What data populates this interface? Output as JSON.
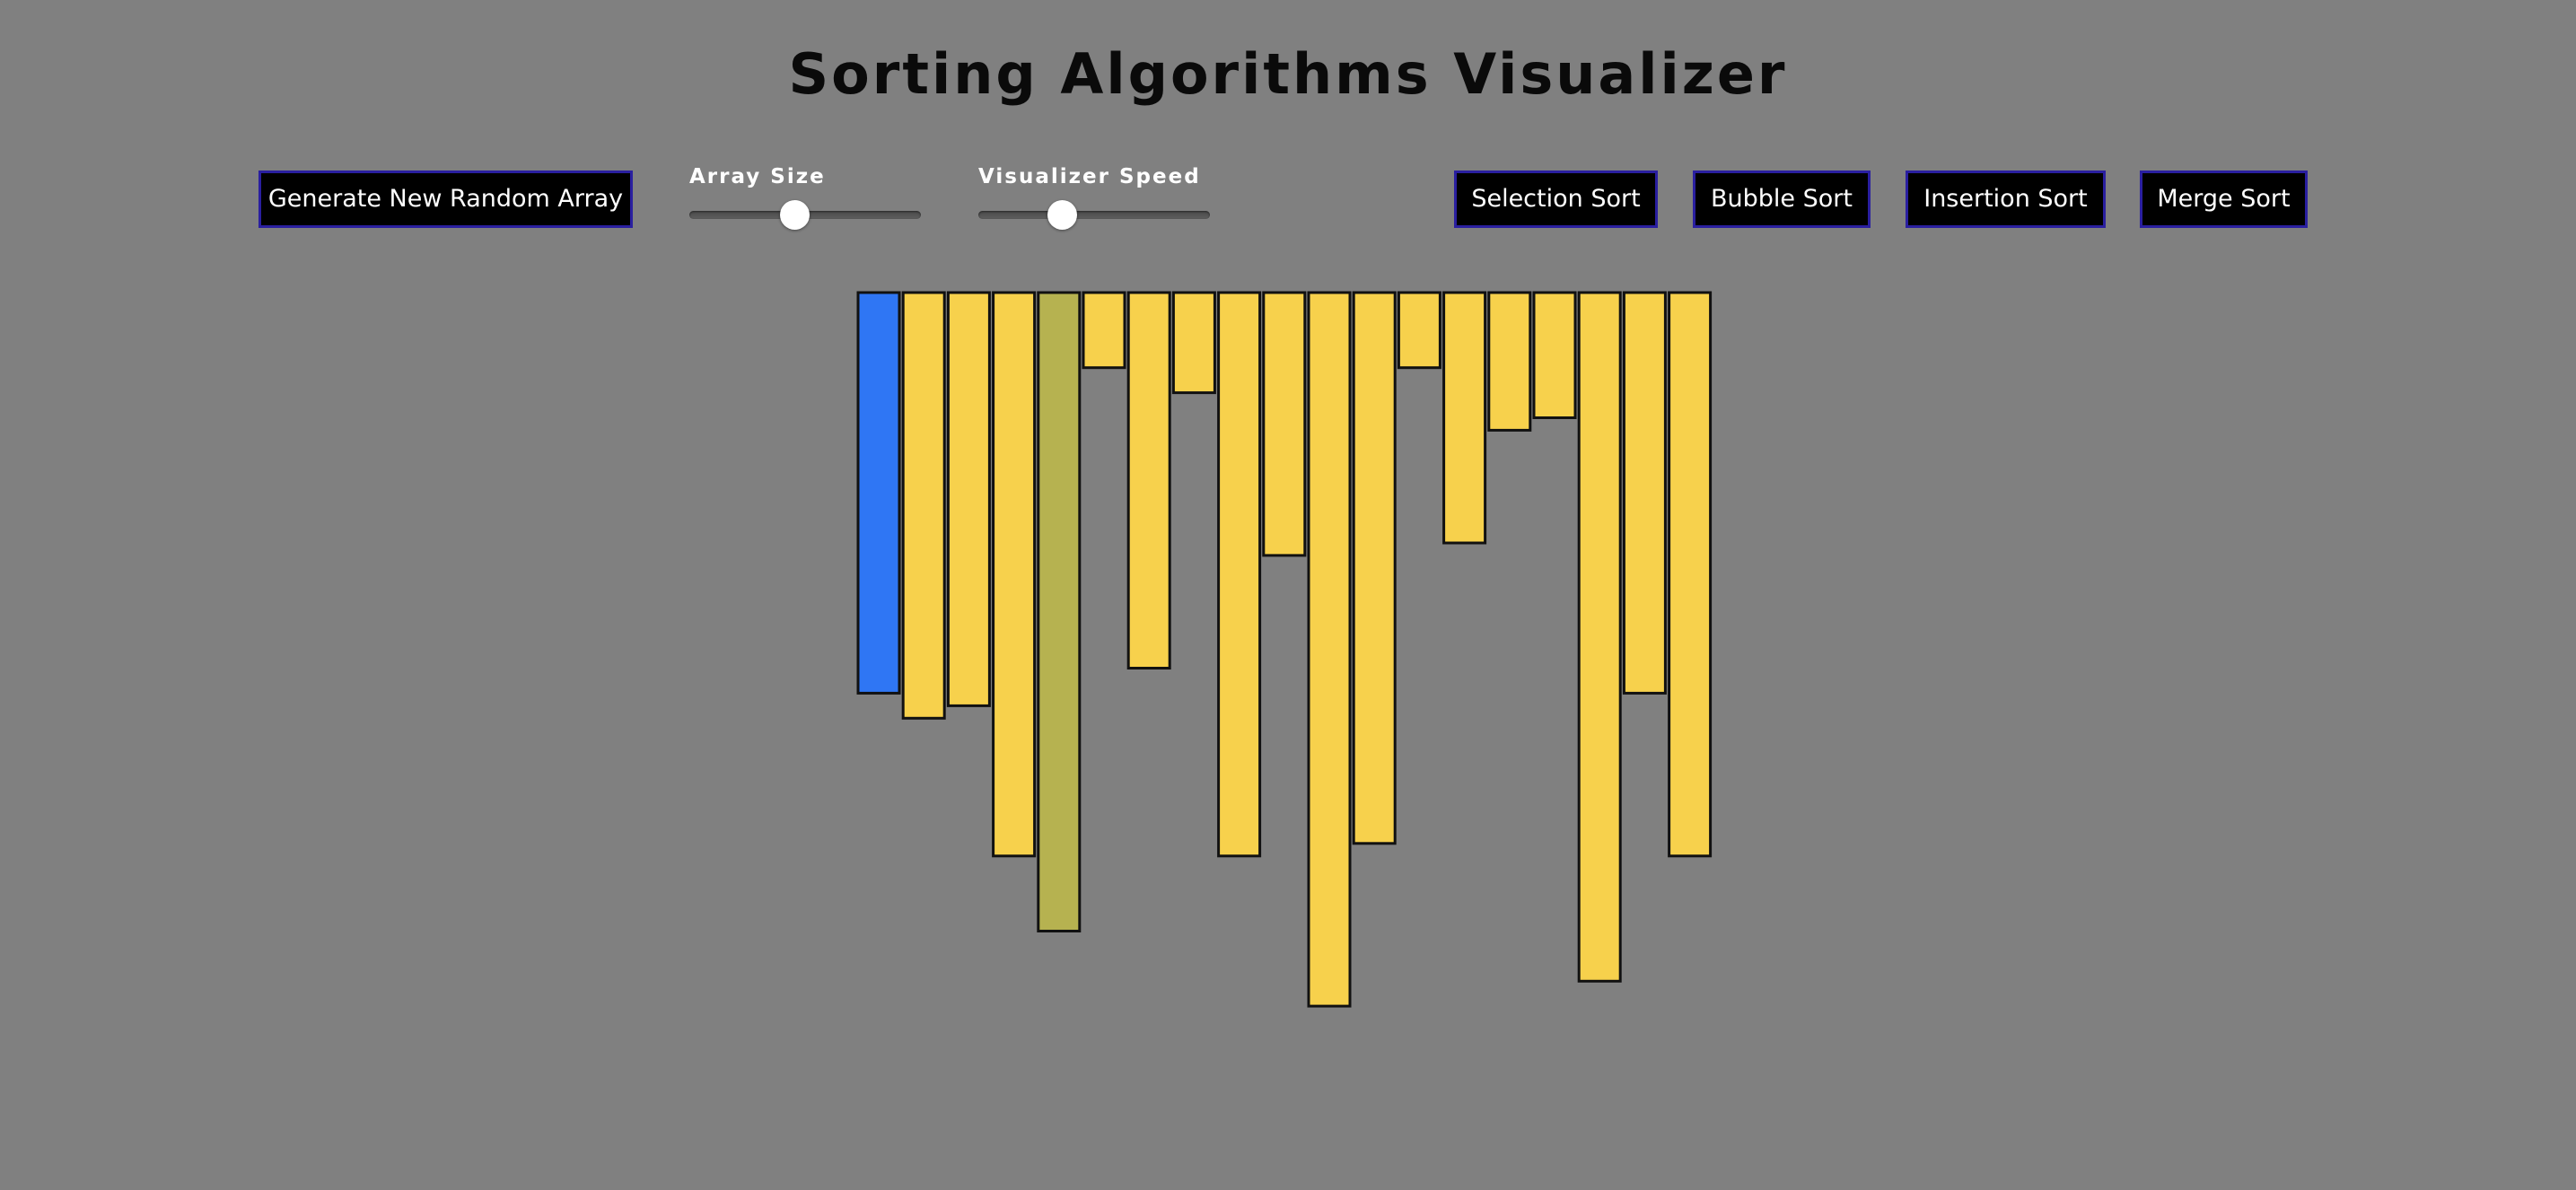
{
  "title": "Sorting Algorithms Visualizer",
  "buttons": {
    "generate": "Generate New Random Array",
    "selection": "Selection Sort",
    "bubble": "Bubble Sort",
    "insertion": "Insertion Sort",
    "merge": "Merge Sort"
  },
  "sliders": {
    "array_size": {
      "label": "Array Size",
      "value_fraction": 0.45
    },
    "speed": {
      "label": "Visualizer Speed",
      "value_fraction": 0.34
    }
  },
  "colors": {
    "background": "#808080",
    "bar_default": "#f7d14c",
    "bar_current": "#2f76f4",
    "bar_compare": "#b6b250",
    "bar_border": "#111111",
    "button_bg": "#000000",
    "button_border": "#2a1fa0"
  },
  "array": {
    "values": [
      320,
      340,
      330,
      450,
      510,
      60,
      300,
      80,
      450,
      210,
      570,
      440,
      60,
      200,
      110,
      100,
      550,
      320,
      450
    ],
    "states": [
      "current",
      "default",
      "default",
      "default",
      "compare",
      "default",
      "default",
      "default",
      "default",
      "default",
      "default",
      "default",
      "default",
      "default",
      "default",
      "default",
      "default",
      "default",
      "default"
    ]
  }
}
